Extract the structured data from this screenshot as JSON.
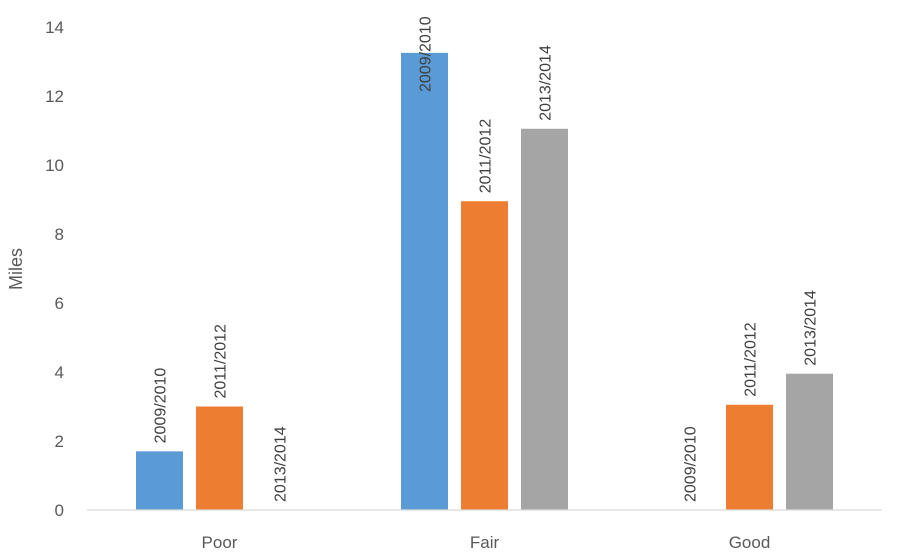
{
  "chart_data": {
    "type": "bar",
    "title": "",
    "xlabel": "",
    "ylabel": "Miles",
    "ylim": [
      0,
      14
    ],
    "yticks": [
      0,
      2,
      4,
      6,
      8,
      10,
      12,
      14
    ],
    "grid": false,
    "legend": "none",
    "categories": [
      "Poor",
      "Fair",
      "Good"
    ],
    "series": [
      {
        "name": "2009/2010",
        "color": "#5B9BD5",
        "values": [
          1.7,
          13.25,
          0
        ]
      },
      {
        "name": "2011/2012",
        "color": "#ED7D31",
        "values": [
          3.0,
          8.95,
          3.05
        ]
      },
      {
        "name": "2013/2014",
        "color": "#A5A5A5",
        "values": [
          0,
          11.05,
          3.95
        ]
      }
    ]
  }
}
